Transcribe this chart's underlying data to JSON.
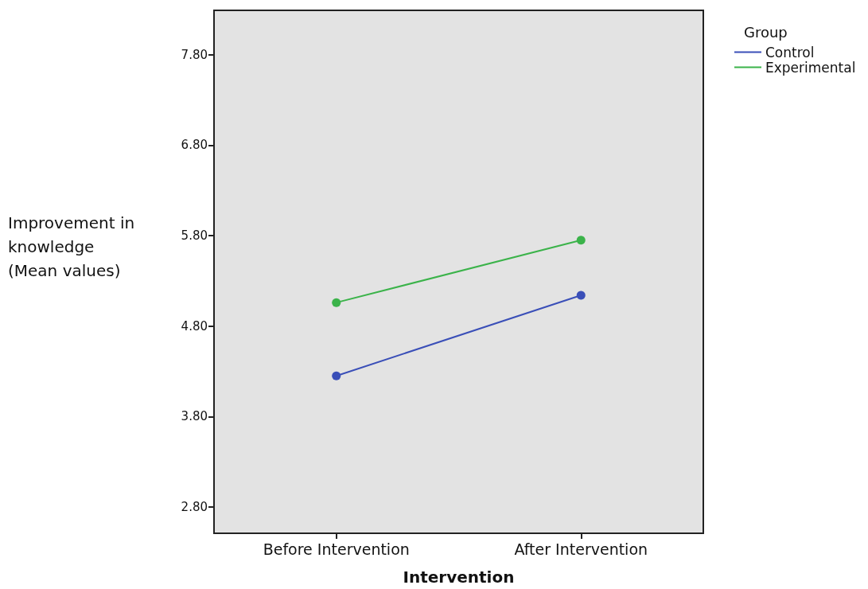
{
  "chart_data": {
    "type": "line",
    "xlabel": "Intervention",
    "ylabel": "Improvement in\nknowledge\n(Mean values)",
    "legend_title": "Group",
    "categories": [
      "Before Intervention",
      "After Intervention"
    ],
    "series": [
      {
        "name": "Control",
        "color": "#3a4fb8",
        "values": [
          4.25,
          5.14
        ]
      },
      {
        "name": "Experimental",
        "color": "#3bb34a",
        "values": [
          5.06,
          5.75
        ]
      }
    ],
    "ylim": [
      2.51,
      8.29
    ],
    "yticks": [
      {
        "value": 2.8,
        "label": "2.80"
      },
      {
        "value": 3.8,
        "label": "3.80"
      },
      {
        "value": 4.8,
        "label": "4.80"
      },
      {
        "value": 5.8,
        "label": "5.80"
      },
      {
        "value": 6.8,
        "label": "6.80"
      },
      {
        "value": 7.8,
        "label": "7.80"
      }
    ],
    "grid": false,
    "legend": "top right",
    "marker": "circle",
    "line_style": "solid"
  }
}
